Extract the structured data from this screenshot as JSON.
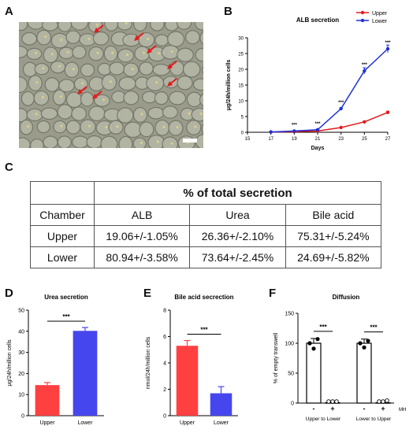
{
  "panels": {
    "a": "A",
    "b": "B",
    "c": "C",
    "d": "D",
    "e": "E",
    "f": "F"
  },
  "micro": {
    "colors": {
      "bg": "#9a9b8a",
      "cell": "#b6b8a8",
      "edge": "#6e7064",
      "arrow": "#e41a1c",
      "scale": "#ffffff"
    },
    "arrows_icon": "red-arrow-icon",
    "arrow_count": 7
  },
  "chartB": {
    "type": "line",
    "title": "ALB secretion",
    "xlabel": "Days",
    "ylabel": "μg/24h/million cells",
    "x": [
      15,
      17,
      19,
      21,
      23,
      25,
      27
    ],
    "xlim": [
      15,
      27
    ],
    "ylim": [
      0,
      30
    ],
    "yticks": [
      0,
      5,
      10,
      15,
      20,
      25,
      30
    ],
    "series": [
      {
        "name": "Upper",
        "color": "#e41a1c",
        "x": [
          17,
          19,
          21,
          23,
          25,
          27
        ],
        "y": [
          0.1,
          0.2,
          0.4,
          1.5,
          3.3,
          6.3
        ],
        "err": [
          0,
          0,
          0,
          0.15,
          0.2,
          0.4
        ]
      },
      {
        "name": "Lower",
        "color": "#1f2fd6",
        "x": [
          17,
          19,
          21,
          23,
          25,
          27
        ],
        "y": [
          0.1,
          0.4,
          0.8,
          7.5,
          19.5,
          26.5
        ],
        "err": [
          0,
          0,
          0,
          0.3,
          1.0,
          1.2
        ]
      }
    ],
    "sig": [
      {
        "x": 19,
        "y": 0.4,
        "label": "***"
      },
      {
        "x": 21,
        "y": 0.8,
        "label": "***"
      },
      {
        "x": 23,
        "y": 7.5,
        "label": "***"
      },
      {
        "x": 25,
        "y": 19.5,
        "label": "***"
      },
      {
        "x": 27,
        "y": 26.5,
        "label": "***"
      }
    ],
    "legend": "top-right"
  },
  "table": {
    "title": "% of total secretion",
    "headers": [
      "Chamber",
      "ALB",
      "Urea",
      "Bile acid"
    ],
    "rows": [
      [
        "Upper",
        "19.06+/-1.05%",
        "26.36+/-2.10%",
        "75.31+/-5.24%"
      ],
      [
        "Lower",
        "80.94+/-3.58%",
        "73.64+/-2.45%",
        "24.69+/-5.82%"
      ]
    ]
  },
  "chartD": {
    "type": "bar",
    "title": "Urea secretion",
    "ylabel": "μg/24h/million cells",
    "categories": [
      "Upper",
      "Lower"
    ],
    "values": [
      14.5,
      40.2
    ],
    "err": [
      1.2,
      1.6
    ],
    "colors": [
      "#ff4040",
      "#4646ee"
    ],
    "ylim": [
      0,
      50
    ],
    "yticks": [
      0,
      10,
      20,
      30,
      40,
      50
    ],
    "sig": "***"
  },
  "chartE": {
    "type": "bar",
    "title": "Bile acid secrection",
    "ylabel": "nmol/24h/million cells",
    "categories": [
      "Upper",
      "Lower"
    ],
    "values": [
      5.3,
      1.7
    ],
    "err": [
      0.4,
      0.5
    ],
    "colors": [
      "#ff4040",
      "#4646ee"
    ],
    "ylim": [
      0,
      8
    ],
    "yticks": [
      0,
      2,
      4,
      6,
      8
    ],
    "sig": "***"
  },
  "chartF": {
    "type": "bar",
    "title": "Diffusion",
    "ylabel": "% of empty transwell",
    "ylim": [
      0,
      150
    ],
    "yticks": [
      0,
      50,
      100,
      150
    ],
    "values": [
      100,
      0.5,
      100,
      0.5
    ],
    "err": [
      8,
      0,
      7,
      0
    ],
    "ticklabels": [
      "-",
      "+",
      "-",
      "+"
    ],
    "mh_label": "MH",
    "groups": [
      "Upper to Lower",
      "Lower to Upper"
    ],
    "points": [
      [
        100,
        91,
        107
      ],
      [
        0,
        0,
        0
      ],
      [
        100,
        93,
        104
      ],
      [
        0,
        0,
        1.5
      ]
    ],
    "sig": "***"
  }
}
